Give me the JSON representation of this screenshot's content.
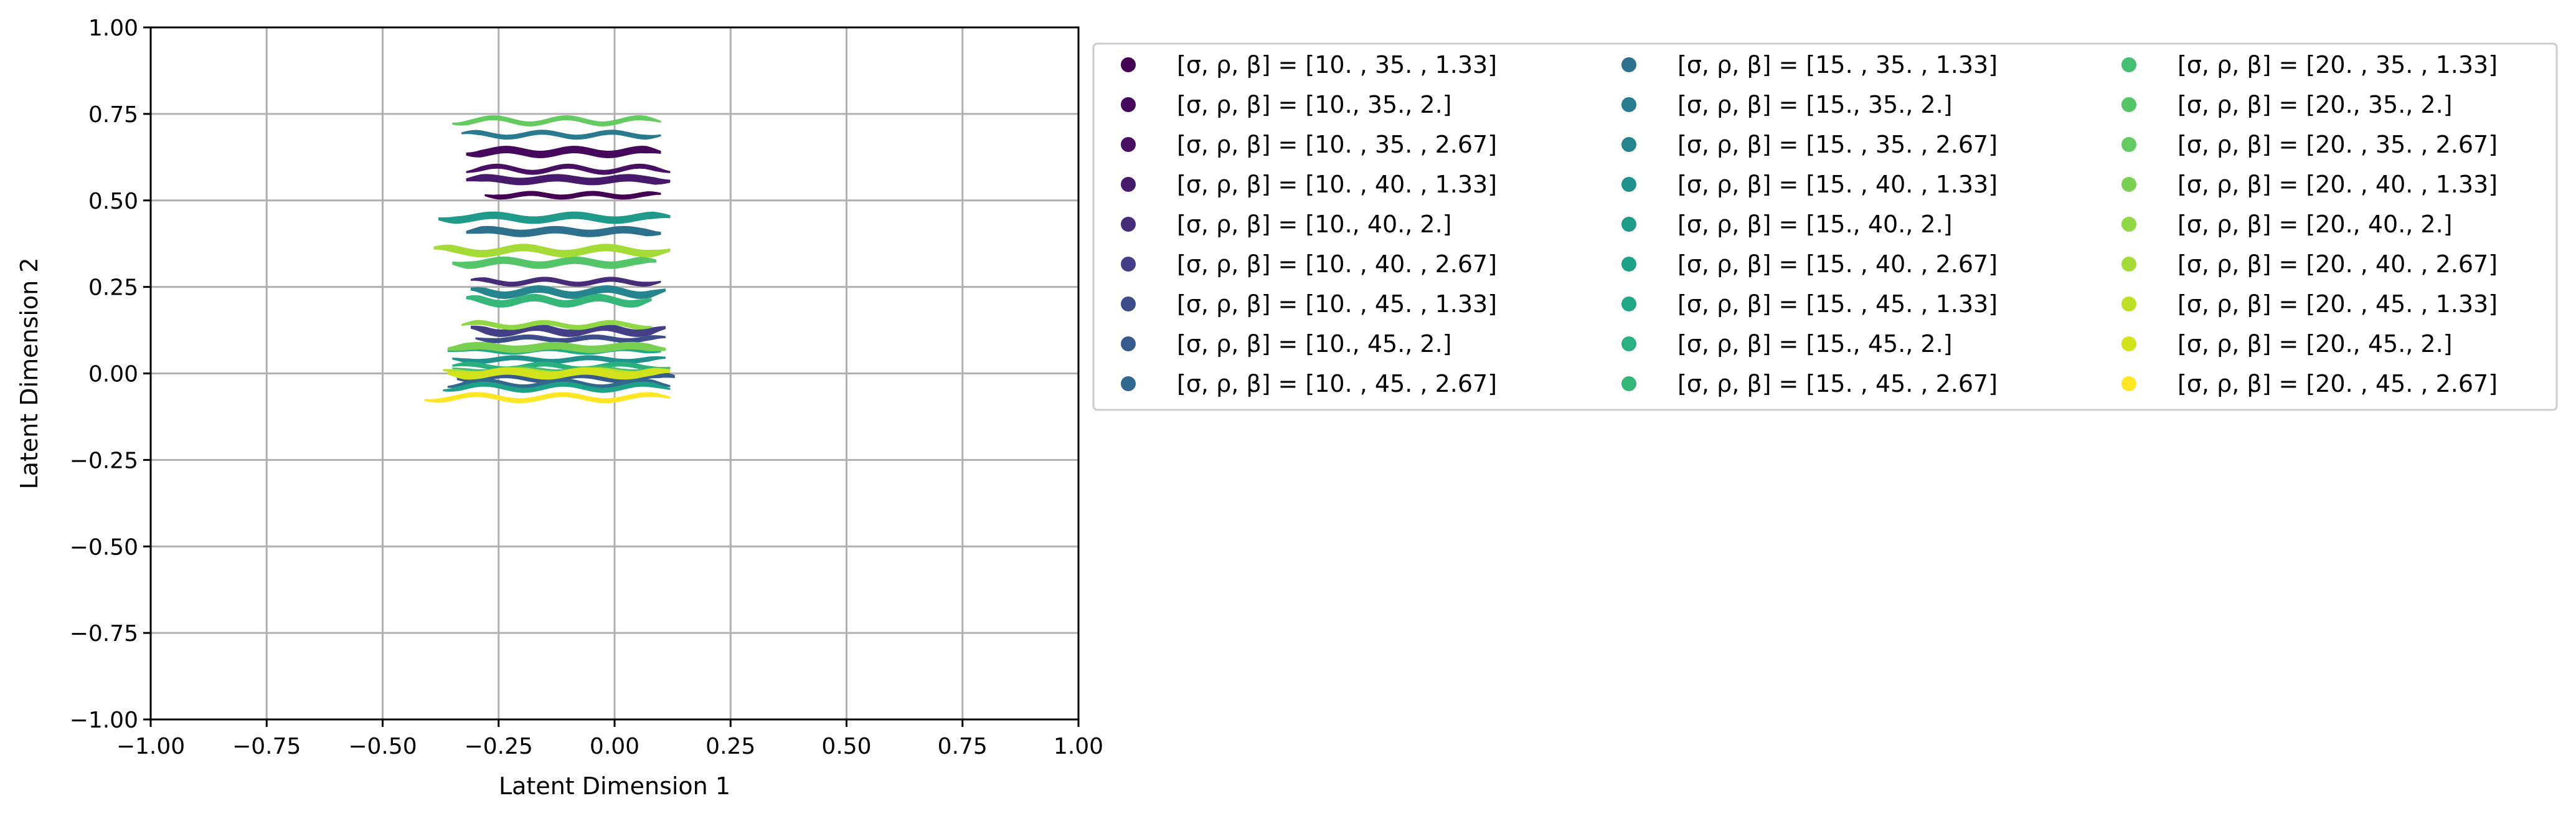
{
  "chart_data": {
    "type": "scatter",
    "title": "",
    "xlabel": "Latent Dimension 1",
    "ylabel": "Latent Dimension 2",
    "xlim": [
      -1.0,
      1.0
    ],
    "ylim": [
      -1.0,
      1.0
    ],
    "grid": true,
    "legend_position": "outside-right",
    "x_ticks": [
      "−1.00",
      "−0.75",
      "−0.50",
      "−0.25",
      "0.00",
      "0.25",
      "0.50",
      "0.75",
      "1.00"
    ],
    "y_ticks": [
      "−1.00",
      "−0.75",
      "−0.50",
      "−0.25",
      "0.00",
      "0.25",
      "0.50",
      "0.75",
      "1.00"
    ],
    "x_tick_values": [
      -1.0,
      -0.75,
      -0.5,
      -0.25,
      0.0,
      0.25,
      0.5,
      0.75,
      1.0
    ],
    "y_tick_values": [
      -1.0,
      -0.75,
      -0.5,
      -0.25,
      0.0,
      0.25,
      0.5,
      0.75,
      1.0
    ],
    "series": [
      {
        "name": "[σ, ρ, β] = [10.  , 35.  ,  1.33]",
        "color": "#440154",
        "x_range": [
          -0.28,
          0.1
        ],
        "y": 0.515
      },
      {
        "name": "[σ, ρ, β] = [10., 35.,  2.]",
        "color": "#46085c",
        "x_range": [
          -0.32,
          0.1
        ],
        "y": 0.64
      },
      {
        "name": "[σ, ρ, β] = [10.  , 35.  ,  2.67]",
        "color": "#471063",
        "x_range": [
          -0.32,
          0.12
        ],
        "y": 0.59
      },
      {
        "name": "[σ, ρ, β] = [10.  , 40.  ,  1.33]",
        "color": "#481a6c",
        "x_range": [
          -0.32,
          0.12
        ],
        "y": 0.56
      },
      {
        "name": "[σ, ρ, β] = [10., 40.,  2.]",
        "color": "#472c7a",
        "x_range": [
          -0.31,
          0.1
        ],
        "y": 0.265
      },
      {
        "name": "[σ, ρ, β] = [10.  , 40.  ,  2.67]",
        "color": "#433e85",
        "x_range": [
          -0.31,
          0.11
        ],
        "y": 0.125
      },
      {
        "name": "[σ, ρ, β] = [10.  , 45.  ,  1.33]",
        "color": "#3d4d8a",
        "x_range": [
          -0.3,
          0.11
        ],
        "y": 0.1
      },
      {
        "name": "[σ, ρ, β] = [10., 45.,  2.]",
        "color": "#375a8c",
        "x_range": [
          -0.34,
          0.13
        ],
        "y": -0.01
      },
      {
        "name": "[σ, ρ, β] = [10.  , 45.  ,  2.67]",
        "color": "#31688e",
        "x_range": [
          -0.36,
          0.12
        ],
        "y": -0.03
      },
      {
        "name": "[σ, ρ, β] = [15.  , 35.  ,  1.33]",
        "color": "#2d708e",
        "x_range": [
          -0.32,
          0.1
        ],
        "y": 0.41
      },
      {
        "name": "[σ, ρ, β] = [15., 35.,  2.]",
        "color": "#297a8e",
        "x_range": [
          -0.33,
          0.1
        ],
        "y": 0.69
      },
      {
        "name": "[σ, ρ, β] = [15.  , 35.  ,  2.67]",
        "color": "#25848e",
        "x_range": [
          -0.31,
          0.11
        ],
        "y": 0.235
      },
      {
        "name": "[σ, ρ, β] = [15.  , 40.  ,  1.33]",
        "color": "#21918c",
        "x_range": [
          -0.35,
          0.11
        ],
        "y": 0.04
      },
      {
        "name": "[σ, ρ, β] = [15., 40.,  2.]",
        "color": "#1f9a8a",
        "x_range": [
          -0.38,
          0.12
        ],
        "y": 0.45
      },
      {
        "name": "[σ, ρ, β] = [15.  , 40.  ,  2.67]",
        "color": "#1fa188",
        "x_range": [
          -0.37,
          0.12
        ],
        "y": -0.04
      },
      {
        "name": "[σ, ρ, β] = [15.  , 45.  ,  1.33]",
        "color": "#22a884",
        "x_range": [
          -0.36,
          0.1
        ],
        "y": 0.07
      },
      {
        "name": "[σ, ρ, β] = [15., 45.,  2.]",
        "color": "#2ab07f",
        "x_range": [
          -0.35,
          0.12
        ],
        "y": 0.02
      },
      {
        "name": "[σ, ρ, β] = [15.  , 45.  ,  2.67]",
        "color": "#35b779",
        "x_range": [
          -0.32,
          0.08
        ],
        "y": 0.21
      },
      {
        "name": "[σ, ρ, β] = [20.  , 35.  ,  1.33]",
        "color": "#44bf70",
        "x_range": [
          -0.35,
          0.12
        ],
        "y": 0.01
      },
      {
        "name": "[σ, ρ, β] = [20., 35.,  2.]",
        "color": "#54c568",
        "x_range": [
          -0.35,
          0.09
        ],
        "y": 0.32
      },
      {
        "name": "[σ, ρ, β] = [20.  , 35.  ,  2.67]",
        "color": "#63cb5f",
        "x_range": [
          -0.35,
          0.1
        ],
        "y": 0.73
      },
      {
        "name": "[σ, ρ, β] = [20.  , 40.  ,  1.33]",
        "color": "#7ad151",
        "x_range": [
          -0.36,
          0.11
        ],
        "y": 0.075
      },
      {
        "name": "[σ, ρ, β] = [20., 40.,  2.]",
        "color": "#8fd744",
        "x_range": [
          -0.33,
          0.08
        ],
        "y": 0.14
      },
      {
        "name": "[σ, ρ, β] = [20.  , 40.  ,  2.67]",
        "color": "#a5db36",
        "x_range": [
          -0.39,
          0.12
        ],
        "y": 0.355
      },
      {
        "name": "[σ, ρ, β] = [20.  , 45.  ,  1.33]",
        "color": "#bddf26",
        "x_range": [
          -0.37,
          0.12
        ],
        "y": 0.005
      },
      {
        "name": "[σ, ρ, β] = [20., 45.,  2.]",
        "color": "#d2e21b",
        "x_range": [
          -0.36,
          0.12
        ],
        "y": 0.0
      },
      {
        "name": "[σ, ρ, β] = [20.  , 45.  ,  2.67]",
        "color": "#fde725",
        "x_range": [
          -0.41,
          0.12
        ],
        "y": -0.07
      }
    ]
  }
}
